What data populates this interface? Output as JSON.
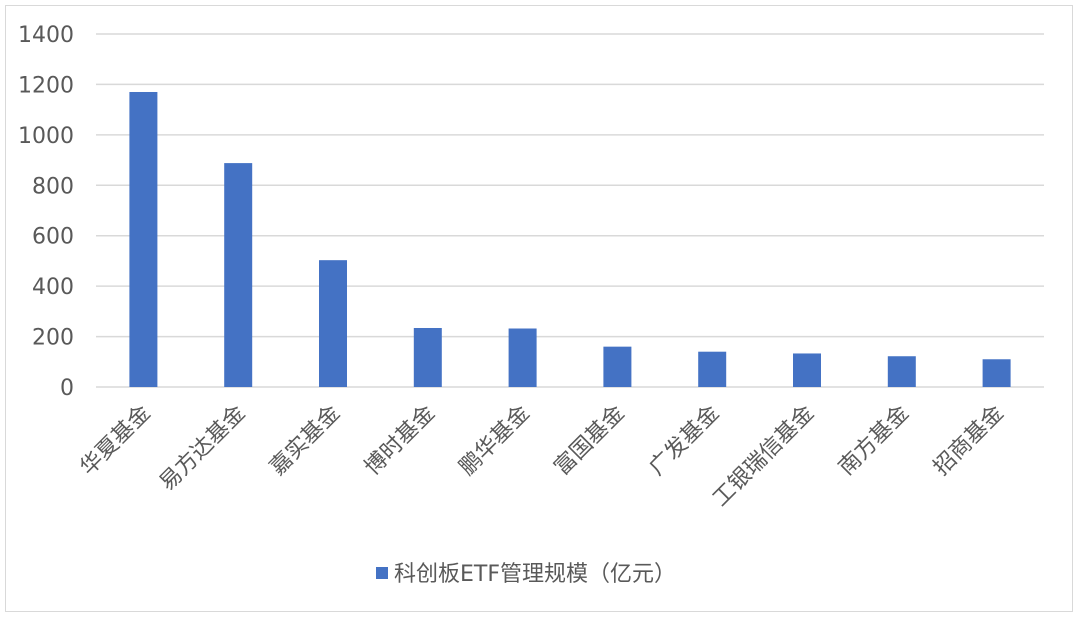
{
  "chart_data": {
    "type": "bar",
    "categories": [
      "华夏基金",
      "易方达基金",
      "嘉实基金",
      "博时基金",
      "鹏华基金",
      "富国基金",
      "广发基金",
      "工银瑞信基金",
      "南方基金",
      "招商基金"
    ],
    "series": [
      {
        "name": "科创板ETF管理规模（亿元）",
        "values": [
          1170,
          888,
          503,
          234,
          232,
          160,
          140,
          133,
          122,
          110
        ],
        "color": "#4472c4"
      }
    ],
    "ylim": [
      0,
      1400
    ],
    "yticks": [
      0,
      200,
      400,
      600,
      800,
      1000,
      1200,
      1400
    ],
    "grid": true,
    "legend_position": "bottom"
  }
}
